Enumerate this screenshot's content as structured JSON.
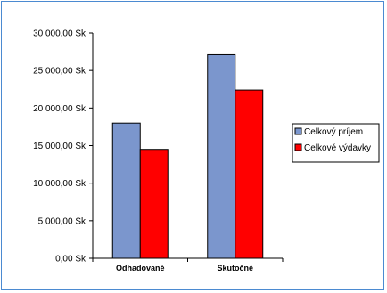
{
  "chart_data": {
    "type": "bar",
    "categories": [
      "Odhadované",
      "Skutočné"
    ],
    "series": [
      {
        "name": "Celkový príjem",
        "values": [
          18000,
          27100
        ],
        "color": "#7b96cd"
      },
      {
        "name": "Celkové výdavky",
        "values": [
          14500,
          22400
        ],
        "color": "#ff0000"
      }
    ],
    "ylim": [
      0,
      30000
    ],
    "y_ticks": [
      0,
      5000,
      10000,
      15000,
      20000,
      25000,
      30000
    ],
    "y_tick_labels": [
      "0,00 Sk",
      "5 000,00 Sk",
      "10 000,00 Sk",
      "15 000,00 Sk",
      "20 000,00 Sk",
      "25 000,00 Sk",
      "30 000,00 Sk"
    ],
    "title": "",
    "xlabel": "",
    "ylabel": "",
    "grid": false,
    "legend_position": "right",
    "colors": {
      "frame_border": "#4b8ad1",
      "bar_outline": "#000000"
    }
  }
}
